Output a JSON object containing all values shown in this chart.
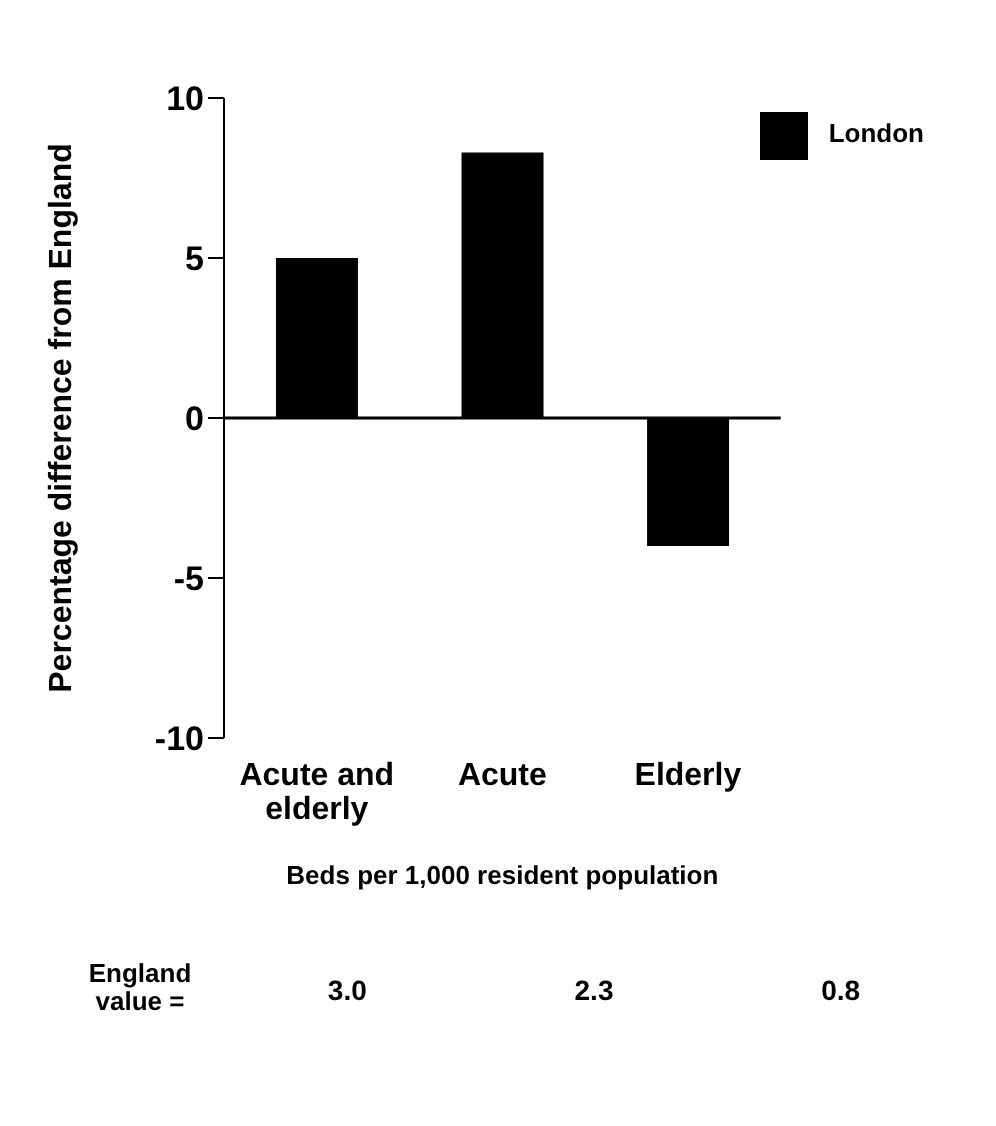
{
  "chart_data": {
    "type": "bar",
    "categories": [
      "Acute and elderly",
      "Acute",
      "Elderly"
    ],
    "series": [
      {
        "name": "London",
        "color": "#000000",
        "values": [
          5.0,
          8.3,
          -4.0
        ]
      }
    ],
    "ylabel": "Percentage difference from England",
    "xlabel": "Beds per 1,000 resident population",
    "ylim": [
      -10,
      10
    ],
    "yticks": [
      -10,
      -5,
      0,
      5,
      10
    ],
    "legend": "top right",
    "annotations": [
      "England value =",
      "3.0",
      "2.3",
      "0.8"
    ]
  }
}
